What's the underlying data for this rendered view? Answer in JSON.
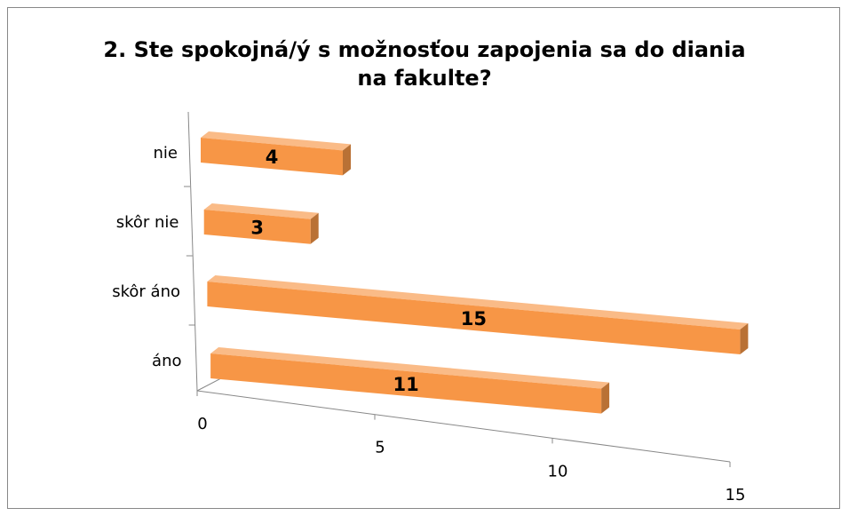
{
  "chart_data": {
    "type": "bar",
    "orientation": "horizontal",
    "title": "2. Ste spokojná/ý s možnosťou zapojenia sa do diania na fakulte?",
    "categories": [
      "nie",
      "skôr nie",
      "skôr áno",
      "áno"
    ],
    "values": [
      4,
      3,
      15,
      11
    ],
    "color": "#f79646",
    "xlim": [
      0,
      15
    ],
    "xticks": [
      0,
      5,
      10,
      15
    ]
  }
}
